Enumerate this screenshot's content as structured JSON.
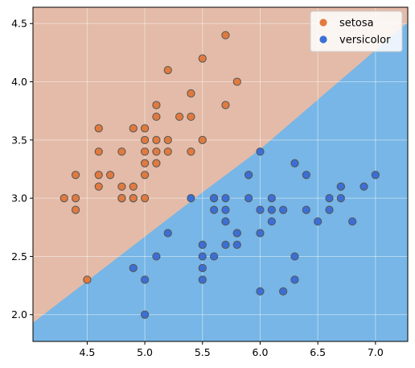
{
  "chart_data": {
    "type": "scatter",
    "title": "",
    "xlabel": "",
    "ylabel": "",
    "xlim": [
      4.03,
      7.28
    ],
    "ylim": [
      1.77,
      4.64
    ],
    "x_ticks": [
      4.5,
      5.0,
      5.5,
      6.0,
      6.5,
      7.0
    ],
    "x_tick_labels": [
      "4.5",
      "5.0",
      "5.5",
      "6.0",
      "6.5",
      "7.0"
    ],
    "y_ticks": [
      2.0,
      2.5,
      3.0,
      3.5,
      4.0,
      4.5
    ],
    "y_tick_labels": [
      "2.0",
      "2.5",
      "3.0",
      "3.5",
      "4.0",
      "4.5"
    ],
    "grid": true,
    "legend_position": "top-right",
    "decision_regions": [
      {
        "class": "setosa",
        "color": "#e3bba8"
      },
      {
        "class": "versicolor",
        "color": "#77b6e6"
      }
    ],
    "decision_boundary": [
      [
        4.03,
        1.93
      ],
      [
        5.5,
        3.05
      ],
      [
        6.0,
        3.42
      ],
      [
        7.28,
        4.51
      ]
    ],
    "series": [
      {
        "name": "setosa",
        "color": "#e07a3f",
        "points": [
          [
            5.1,
            3.5
          ],
          [
            4.9,
            3.0
          ],
          [
            4.7,
            3.2
          ],
          [
            4.6,
            3.1
          ],
          [
            5.0,
            3.6
          ],
          [
            5.4,
            3.9
          ],
          [
            4.6,
            3.4
          ],
          [
            5.0,
            3.4
          ],
          [
            4.4,
            2.9
          ],
          [
            4.9,
            3.1
          ],
          [
            5.4,
            3.7
          ],
          [
            4.8,
            3.4
          ],
          [
            4.8,
            3.0
          ],
          [
            4.3,
            3.0
          ],
          [
            5.8,
            4.0
          ],
          [
            5.7,
            4.4
          ],
          [
            5.7,
            3.8
          ],
          [
            5.1,
            3.8
          ],
          [
            5.2,
            3.5
          ],
          [
            5.0,
            3.2
          ],
          [
            5.1,
            3.3
          ],
          [
            4.8,
            3.1
          ],
          [
            5.2,
            4.1
          ],
          [
            5.5,
            4.2
          ],
          [
            5.0,
            3.5
          ],
          [
            5.3,
            3.7
          ],
          [
            4.4,
            3.2
          ],
          [
            4.5,
            2.3
          ],
          [
            4.6,
            3.6
          ],
          [
            4.9,
            3.6
          ],
          [
            5.1,
            3.4
          ],
          [
            5.0,
            3.3
          ],
          [
            4.4,
            3.0
          ],
          [
            5.4,
            3.4
          ],
          [
            5.2,
            3.4
          ],
          [
            5.5,
            3.5
          ],
          [
            4.6,
            3.2
          ],
          [
            4.8,
            3.0
          ],
          [
            5.1,
            3.7
          ],
          [
            5.0,
            3.0
          ],
          [
            4.9,
            3.0
          ]
        ]
      },
      {
        "name": "versicolor",
        "color": "#3b6fd6",
        "points": [
          [
            7.0,
            3.2
          ],
          [
            6.4,
            3.2
          ],
          [
            6.9,
            3.1
          ],
          [
            5.5,
            2.3
          ],
          [
            6.5,
            2.8
          ],
          [
            5.7,
            2.8
          ],
          [
            6.3,
            3.3
          ],
          [
            4.9,
            2.4
          ],
          [
            6.6,
            2.9
          ],
          [
            5.2,
            2.7
          ],
          [
            5.0,
            2.0
          ],
          [
            5.9,
            3.0
          ],
          [
            6.0,
            2.2
          ],
          [
            6.1,
            2.9
          ],
          [
            5.6,
            2.9
          ],
          [
            6.7,
            3.1
          ],
          [
            5.6,
            3.0
          ],
          [
            5.8,
            2.7
          ],
          [
            6.2,
            2.2
          ],
          [
            5.6,
            2.5
          ],
          [
            5.9,
            3.2
          ],
          [
            6.1,
            2.8
          ],
          [
            6.3,
            2.5
          ],
          [
            6.4,
            2.9
          ],
          [
            6.6,
            3.0
          ],
          [
            6.8,
            2.8
          ],
          [
            6.7,
            3.0
          ],
          [
            6.0,
            2.9
          ],
          [
            5.7,
            2.6
          ],
          [
            5.5,
            2.4
          ],
          [
            5.8,
            2.7
          ],
          [
            6.0,
            2.7
          ],
          [
            5.4,
            3.0
          ],
          [
            6.0,
            3.4
          ],
          [
            6.3,
            2.3
          ],
          [
            5.6,
            3.0
          ],
          [
            5.5,
            2.5
          ],
          [
            5.5,
            2.6
          ],
          [
            6.1,
            3.0
          ],
          [
            5.8,
            2.6
          ],
          [
            5.0,
            2.3
          ],
          [
            5.7,
            3.0
          ],
          [
            5.7,
            2.9
          ],
          [
            6.2,
            2.9
          ],
          [
            5.1,
            2.5
          ],
          [
            5.7,
            2.8
          ],
          [
            6.7,
            3.1
          ],
          [
            5.9,
            3.2
          ]
        ]
      }
    ]
  }
}
